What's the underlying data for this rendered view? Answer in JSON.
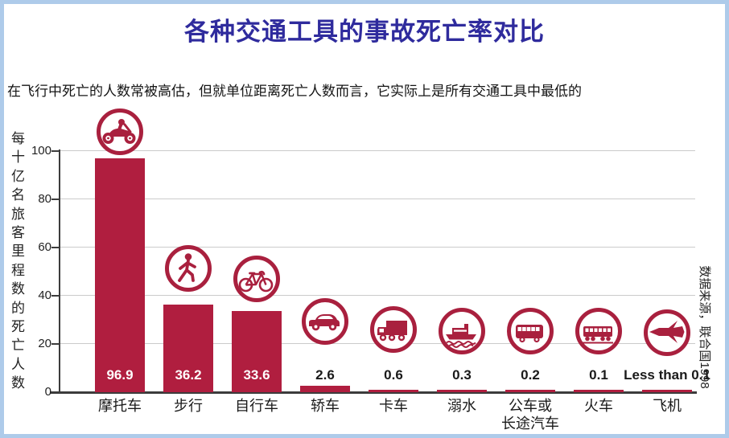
{
  "page": {
    "border_color": "#AECBEA",
    "background": "#FFFFFF"
  },
  "chart_data": {
    "type": "bar",
    "title": "各种交通工具的事故死亡率对比",
    "title_color": "#2F2B9D",
    "subtitle": "在飞行中死亡的人数常被高估，但就单位距离死亡人数而言，它实际上是所有交通工具中最低的",
    "ylabel": "每十亿名旅客里程数的死亡人数",
    "source_note": "数据来源，联合国1998",
    "ylim": [
      0,
      100
    ],
    "yticks": [
      0,
      20,
      40,
      60,
      80,
      100
    ],
    "grid": true,
    "legend": "none",
    "bar_color": "#B01E3F",
    "categories": [
      "摩托车",
      "步行",
      "自行车",
      "轿车",
      "卡车",
      "溺水",
      "公车或\n长途汽车",
      "火车",
      "飞机"
    ],
    "values": [
      96.9,
      36.2,
      33.6,
      2.6,
      0.6,
      0.3,
      0.2,
      0.1,
      0.05
    ],
    "value_labels": [
      "96.9",
      "36.2",
      "33.6",
      "2.6",
      "0.6",
      "0.3",
      "0.2",
      "0.1",
      "Less than 0.1"
    ],
    "icons": [
      "motorcycle-icon",
      "pedestrian-icon",
      "bicycle-icon",
      "car-icon",
      "truck-icon",
      "ship-icon",
      "bus-icon",
      "train-icon",
      "airplane-icon"
    ]
  }
}
